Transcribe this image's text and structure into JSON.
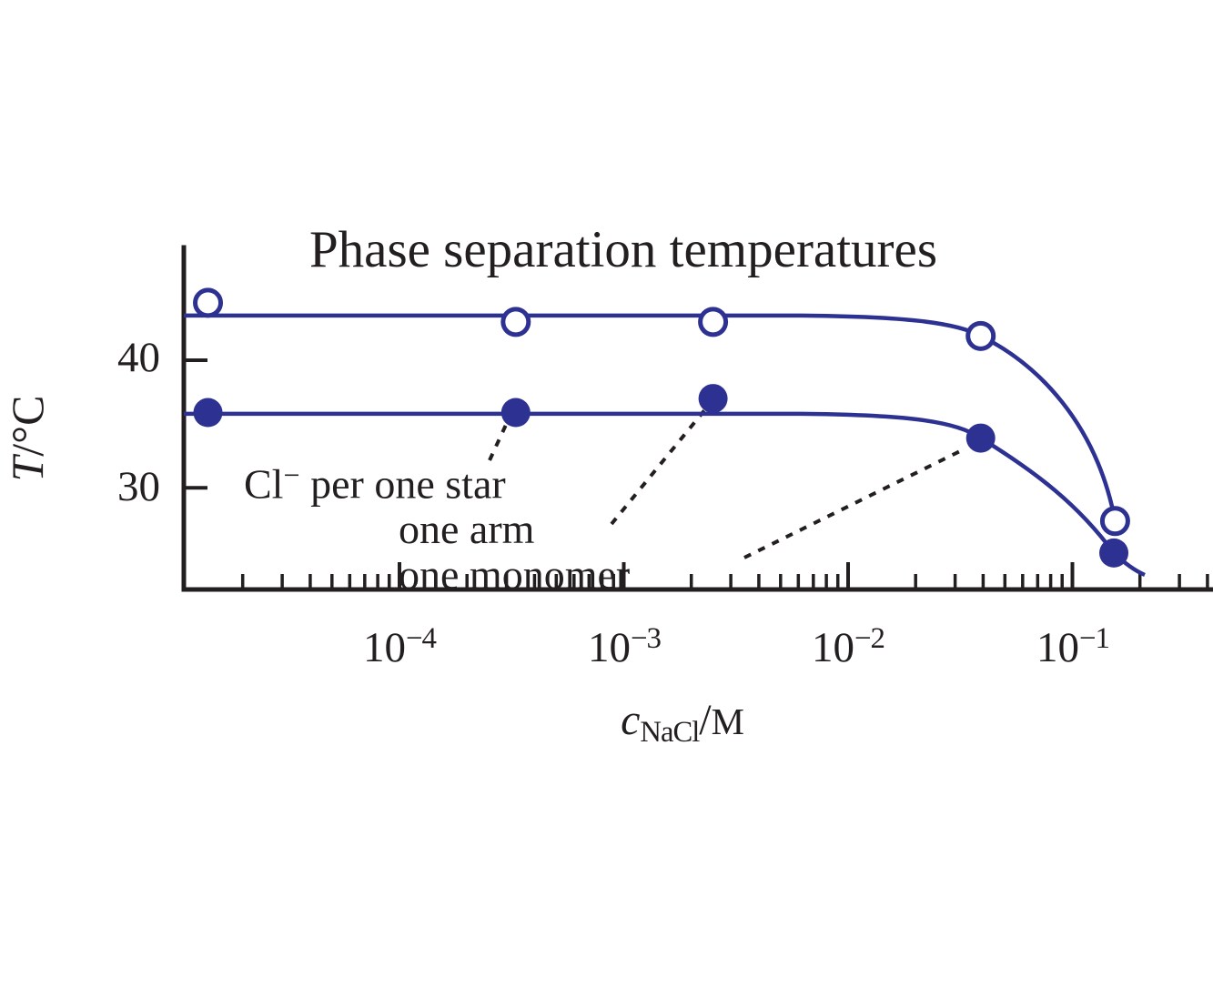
{
  "figure": {
    "title": "Phase separation temperatures",
    "background": "#ffffff",
    "ink_color": "#231f20",
    "curve_color": "#2d3192"
  },
  "y_axis": {
    "label_var": "T",
    "label_sep": "/",
    "label_unit": "°C",
    "ticks": [
      {
        "label": "40",
        "T": 40
      },
      {
        "label": "30",
        "T": 30
      }
    ],
    "unlabeled_tick_T": 43.5
  },
  "x_axis": {
    "label_var": "c",
    "label_sub": "NaCl",
    "label_sep": "/",
    "label_unit": "M",
    "scale": "log",
    "ticks": [
      {
        "base": "10",
        "exp": "−4",
        "value": 0.0001
      },
      {
        "base": "10",
        "exp": "−3",
        "value": 0.001
      },
      {
        "base": "10",
        "exp": "−2",
        "value": 0.01
      },
      {
        "base": "10",
        "exp": "−1",
        "value": 0.1
      }
    ]
  },
  "annotation": {
    "line1_pre": "Cl",
    "line1_sup": "−",
    "line1_post": " per one star",
    "line2": "one arm",
    "line3": "one monomer"
  },
  "chart_data": {
    "type": "line",
    "title": "Phase separation temperatures",
    "xlabel": "c_NaCl / M",
    "ylabel": "T / °C",
    "x_scale": "log",
    "xlim": [
      1.1e-05,
      0.42
    ],
    "ylim": [
      22,
      48.8
    ],
    "x_ticks": [
      0.0001,
      0.001,
      0.01,
      0.1
    ],
    "y_ticks": [
      30,
      40
    ],
    "grid": false,
    "legend": false,
    "series": [
      {
        "name": "open circles (upper curve)",
        "marker": "open-circle",
        "color": "#2d3192",
        "plateau_T": 43.5,
        "x": [
          1.4e-05,
          0.00033,
          0.0025,
          0.039,
          0.155
        ],
        "T": [
          44.5,
          43.0,
          43.0,
          41.9,
          27.4
        ]
      },
      {
        "name": "filled circles (lower curve)",
        "marker": "filled-circle",
        "color": "#2d3192",
        "plateau_T": 35.8,
        "x": [
          1.4e-05,
          0.00033,
          0.0025,
          0.039,
          0.153
        ],
        "T": [
          35.9,
          35.9,
          37.0,
          33.9,
          24.9
        ]
      }
    ],
    "annotations": [
      {
        "text": "Cl− per one star",
        "target_x": 0.00033,
        "target_series": "filled circles"
      },
      {
        "text": "one arm",
        "target_x": 0.0025,
        "target_series": "filled circles"
      },
      {
        "text": "one monomer",
        "target_x": 0.039,
        "target_series": "filled circles"
      }
    ]
  }
}
